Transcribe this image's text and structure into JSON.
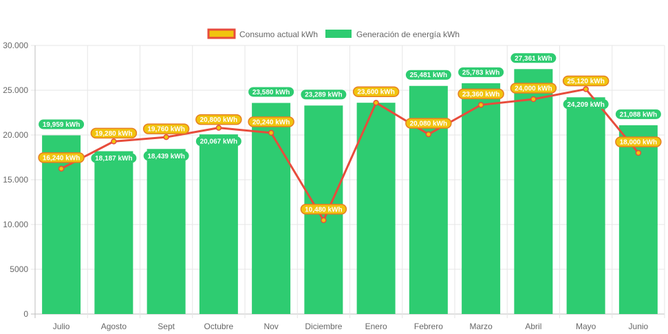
{
  "chart_data": {
    "type": "bar",
    "categories": [
      "Julio",
      "Agosto",
      "Sept",
      "Octubre",
      "Nov",
      "Diciembre",
      "Enero",
      "Febrero",
      "Marzo",
      "Abril",
      "Mayo",
      "Junio"
    ],
    "ylim": [
      0,
      30000
    ],
    "yticks": [
      {
        "value": 0,
        "label": "0"
      },
      {
        "value": 5000,
        "label": "5000"
      },
      {
        "value": 10000,
        "label": "10.000"
      },
      {
        "value": 15000,
        "label": "15.000"
      },
      {
        "value": 20000,
        "label": "20.000"
      },
      {
        "value": 25000,
        "label": "25.000"
      },
      {
        "value": 30000,
        "label": "30.000"
      }
    ],
    "grid": true,
    "legend_position": "top-center",
    "series": [
      {
        "name": "Consumo actual kWh",
        "type": "line",
        "color": "#e74c3c",
        "fill_color": "#f1c40f",
        "values": [
          16240,
          19280,
          19760,
          20800,
          20240,
          10480,
          23600,
          20080,
          23360,
          24000,
          25120,
          18000
        ],
        "labels": [
          "16,240 kWh",
          "19,280 kWh",
          "19,760 kWh",
          "20,800 kWh",
          "20,240 kWh",
          "10,480 kWh",
          "23,600 kWh",
          "20,080 kWh",
          "23,360 kWh",
          "24,000 kWh",
          "25,120 kWh",
          "18,000 kWh"
        ]
      },
      {
        "name": "Generación de energía kWh",
        "type": "bar",
        "color": "#2ecc71",
        "values": [
          19959,
          18187,
          18439,
          20067,
          23580,
          23289,
          23600,
          25481,
          25783,
          27361,
          24209,
          21088
        ],
        "labels": [
          "19,959 kWh",
          "18,187 kWh",
          "18,439 kWh",
          "20,067 kWh",
          "23,580 kWh",
          "23,289 kWh",
          "23,600 kWh",
          "25,481 kWh",
          "25,783 kWh",
          "27,361 kWh",
          "24,209 kWh",
          "21,088 kWh"
        ]
      }
    ]
  }
}
